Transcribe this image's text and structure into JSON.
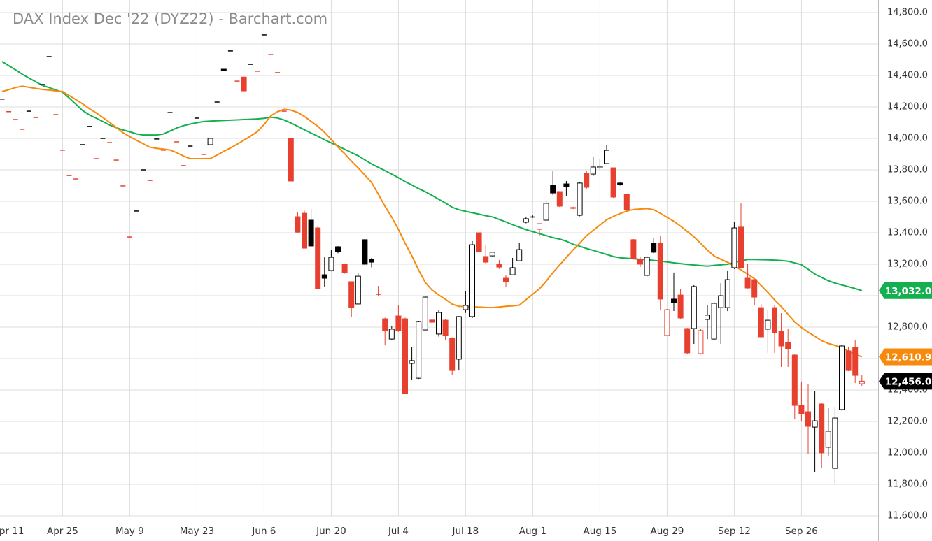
{
  "chart_data": {
    "type": "candlestick",
    "title": "DAX Index Dec '22 (DYZ22) - Barchart.com",
    "categories": [
      "Apr 11",
      null,
      null,
      null,
      null,
      null,
      null,
      null,
      null,
      null,
      "Apr 25",
      null,
      null,
      null,
      null,
      null,
      null,
      null,
      null,
      null,
      "May 9",
      null,
      null,
      null,
      null,
      null,
      null,
      null,
      null,
      null,
      "May 23",
      null,
      null,
      null,
      null,
      null,
      null,
      null,
      null,
      null,
      "Jun 6",
      null,
      null,
      null,
      null,
      null,
      null,
      null,
      null,
      null,
      "Jun 20",
      null,
      null,
      null,
      null,
      null,
      null,
      null,
      null,
      null,
      "Jul 4",
      null,
      null,
      null,
      null,
      null,
      null,
      null,
      null,
      null,
      "Jul 18",
      null,
      null,
      null,
      null,
      null,
      null,
      null,
      null,
      null,
      "Aug 1",
      null,
      null,
      null,
      null,
      null,
      null,
      null,
      null,
      null,
      "Aug 15",
      null,
      null,
      null,
      null,
      null,
      null,
      null,
      null,
      null,
      "Aug 29",
      null,
      null,
      null,
      null,
      null,
      null,
      null,
      null,
      null,
      "Sep 12",
      null,
      null,
      null,
      null,
      null,
      null,
      null,
      null,
      null,
      "Sep 26",
      null,
      null,
      null,
      null,
      null,
      null,
      null,
      null,
      null
    ],
    "candles": {
      "up_color": "#000000",
      "down_color": "#e8402f",
      "last_label": "12,456.0",
      "open": [
        null,
        14250,
        14170,
        14120,
        14058,
        14173,
        14133,
        14342,
        14520,
        14151,
        13925,
        13764,
        13742,
        13960,
        14076,
        13871,
        14000,
        13973,
        13862,
        13698,
        13373,
        13538,
        13800,
        13733,
        13996,
        13925,
        14164,
        13978,
        13827,
        13951,
        14129,
        13898,
        13960,
        14231,
        14440,
        14556,
        14364,
        14390,
        14471,
        14427,
        14658,
        14533,
        14418,
        14173,
        14000,
        13502,
        13524,
        13480,
        13431,
        13133,
        13160,
        13311,
        13200,
        13089,
        12947,
        13356,
        13231,
        13009,
        12853,
        12724,
        12871,
        12853,
        12569,
        12475,
        12782,
        12845,
        12756,
        12844,
        12729,
        12596,
        12911,
        12867,
        13400,
        13249,
        13253,
        13200,
        13111,
        13133,
        13222,
        13467,
        13500,
        13422,
        13480,
        13700,
        13662,
        13711,
        13560,
        13511,
        13778,
        13773,
        13813,
        13840,
        13813,
        13716,
        13644,
        13356,
        13231,
        13129,
        13333,
        13333,
        12747,
        12978,
        13004,
        12791,
        12791,
        12631,
        12849,
        12724,
        12924,
        12924,
        13178,
        13436,
        13111,
        13102,
        12924,
        12787,
        12924,
        12773,
        12700,
        12622,
        12302,
        12262,
        12164,
        12311,
        12036,
        11902,
        12276,
        12649,
        12671,
        12440
      ],
      "high": [
        null,
        14250,
        14170,
        14120,
        14058,
        14173,
        14133,
        14342,
        14520,
        14151,
        13925,
        13764,
        13742,
        13960,
        14076,
        13871,
        14000,
        13973,
        13862,
        13698,
        13373,
        13538,
        13800,
        13733,
        13996,
        13925,
        14164,
        13978,
        13827,
        13951,
        14129,
        13898,
        14000,
        14231,
        14440,
        14556,
        14364,
        14390,
        14471,
        14427,
        14658,
        14533,
        14418,
        14173,
        14000,
        13530,
        13540,
        13551,
        13440,
        13244,
        13293,
        13315,
        13205,
        13090,
        13147,
        13360,
        13240,
        13062,
        12860,
        12809,
        12938,
        12860,
        12671,
        12840,
        12995,
        12850,
        12911,
        12850,
        12735,
        12870,
        13031,
        13347,
        13404,
        13324,
        13280,
        13227,
        13133,
        13240,
        13338,
        13500,
        13510,
        13460,
        13600,
        13791,
        13665,
        13729,
        13565,
        13720,
        13796,
        13880,
        13871,
        13956,
        13815,
        13720,
        13648,
        13360,
        13249,
        13253,
        13369,
        13382,
        12915,
        13147,
        13044,
        12795,
        13067,
        12790,
        12938,
        12960,
        13080,
        13160,
        13467,
        13591,
        13204,
        13105,
        12947,
        12907,
        12942,
        12889,
        12790,
        12630,
        12449,
        12436,
        12391,
        12320,
        12284,
        12293,
        12689,
        12676,
        12720,
        12493
      ],
      "low": [
        null,
        14250,
        14170,
        14120,
        14058,
        14173,
        14133,
        14342,
        14520,
        14151,
        13925,
        13764,
        13742,
        13960,
        14076,
        13871,
        14000,
        13973,
        13862,
        13698,
        13373,
        13538,
        13800,
        13733,
        13996,
        13925,
        14164,
        13978,
        13827,
        13951,
        14129,
        13898,
        13960,
        14231,
        14430,
        14556,
        14364,
        14302,
        14471,
        14427,
        14658,
        14533,
        14418,
        14173,
        13729,
        13400,
        13300,
        13310,
        13040,
        13058,
        13155,
        13270,
        13140,
        12867,
        12945,
        13190,
        13180,
        13000,
        12684,
        12720,
        12770,
        12375,
        12467,
        12470,
        12780,
        12820,
        12740,
        12720,
        12493,
        12524,
        12890,
        12858,
        13270,
        13200,
        13250,
        13170,
        13053,
        13130,
        13220,
        13460,
        13495,
        13378,
        13478,
        13640,
        13564,
        13636,
        13550,
        13505,
        13680,
        13760,
        13800,
        13835,
        13622,
        13700,
        13540,
        13230,
        13182,
        13120,
        13270,
        12911,
        12745,
        12902,
        12850,
        12627,
        12693,
        12625,
        12724,
        12720,
        12693,
        12902,
        13170,
        13173,
        13045,
        12942,
        12730,
        12636,
        12636,
        12547,
        12547,
        12213,
        12200,
        11991,
        11880,
        11902,
        11982,
        11804,
        12270,
        12520,
        12444,
        12427
      ],
      "close": [
        null,
        14250,
        14170,
        14120,
        14058,
        14173,
        14133,
        14342,
        14520,
        14151,
        13925,
        13764,
        13742,
        13960,
        14076,
        13871,
        14000,
        13973,
        13862,
        13698,
        13373,
        13538,
        13800,
        13733,
        13996,
        13925,
        14164,
        13978,
        13827,
        13951,
        14129,
        13898,
        14000,
        14231,
        14430,
        14556,
        14364,
        14302,
        14471,
        14427,
        14658,
        14533,
        14418,
        14173,
        13729,
        13404,
        13302,
        13316,
        13045,
        13111,
        13244,
        13280,
        13147,
        12925,
        13124,
        13200,
        13213,
        13009,
        12778,
        12787,
        12780,
        12378,
        12587,
        12836,
        12991,
        12831,
        12893,
        12747,
        12524,
        12867,
        12938,
        13324,
        13280,
        13213,
        13276,
        13182,
        13089,
        13178,
        13293,
        13489,
        13500,
        13458,
        13587,
        13653,
        13569,
        13693,
        13556,
        13716,
        13689,
        13818,
        13822,
        13924,
        13627,
        13707,
        13547,
        13236,
        13200,
        13244,
        13276,
        12978,
        12911,
        12956,
        12858,
        12636,
        13058,
        12778,
        12876,
        12951,
        13000,
        13102,
        13431,
        13178,
        13049,
        12991,
        12738,
        12844,
        12764,
        12680,
        12660,
        12302,
        12249,
        12169,
        12204,
        12000,
        12138,
        12222,
        12680,
        12524,
        12493,
        12456
      ]
    },
    "series": [
      {
        "color": "#14b04f",
        "last_label": "13,032.0",
        "values": [
          null,
          14489,
          14462,
          14436,
          14408,
          14384,
          14360,
          14337,
          14323,
          14308,
          14294,
          14256,
          14217,
          14177,
          14149,
          14129,
          14107,
          14085,
          14068,
          14054,
          14042,
          14029,
          14022,
          14022,
          14022,
          14028,
          14047,
          14066,
          14081,
          14091,
          14100,
          14107,
          14110,
          14112,
          14114,
          14116,
          14118,
          14120,
          14122,
          14124,
          14128,
          14135,
          14130,
          14117,
          14098,
          14077,
          14055,
          14034,
          14014,
          13991,
          13971,
          13951,
          13931,
          13910,
          13890,
          13863,
          13838,
          13816,
          13795,
          13773,
          13750,
          13725,
          13704,
          13681,
          13661,
          13638,
          13613,
          13589,
          13562,
          13546,
          13536,
          13527,
          13518,
          13508,
          13501,
          13485,
          13469,
          13451,
          13435,
          13420,
          13407,
          13394,
          13382,
          13369,
          13360,
          13346,
          13327,
          13314,
          13300,
          13288,
          13275,
          13262,
          13249,
          13241,
          13238,
          13235,
          13231,
          13229,
          13224,
          13220,
          13214,
          13209,
          13204,
          13199,
          13195,
          13191,
          13188,
          13192,
          13196,
          13200,
          13210,
          13221,
          13230,
          13230,
          13229,
          13228,
          13226,
          13223,
          13219,
          13208,
          13197,
          13168,
          13137,
          13116,
          13095,
          13080,
          13068,
          13057,
          13045,
          13032
        ]
      },
      {
        "color": "#f7890c",
        "last_label": "12,610.9",
        "values": [
          null,
          14298,
          14310,
          14323,
          14332,
          14325,
          14318,
          14311,
          14307,
          14302,
          14298,
          14272,
          14246,
          14219,
          14189,
          14162,
          14133,
          14102,
          14070,
          14036,
          14011,
          13988,
          13966,
          13944,
          13937,
          13932,
          13926,
          13909,
          13888,
          13871,
          13871,
          13871,
          13872,
          13894,
          13918,
          13939,
          13963,
          13989,
          14015,
          14043,
          14088,
          14143,
          14170,
          14185,
          14180,
          14165,
          14140,
          14108,
          14077,
          14039,
          13994,
          13945,
          13902,
          13855,
          13813,
          13766,
          13720,
          13646,
          13568,
          13499,
          13421,
          13333,
          13253,
          13164,
          13084,
          13036,
          13005,
          12977,
          12946,
          12932,
          12930,
          12929,
          12927,
          12925,
          12924,
          12928,
          12932,
          12935,
          12940,
          12975,
          13009,
          13044,
          13092,
          13146,
          13195,
          13243,
          13291,
          13334,
          13381,
          13415,
          13449,
          13483,
          13504,
          13522,
          13538,
          13548,
          13551,
          13554,
          13546,
          13523,
          13498,
          13473,
          13442,
          13408,
          13374,
          13332,
          13290,
          13253,
          13232,
          13212,
          13189,
          13164,
          13137,
          13108,
          13065,
          13021,
          12974,
          12931,
          12882,
          12833,
          12798,
          12768,
          12742,
          12714,
          12696,
          12684,
          12667,
          12647,
          12626,
          12610.9
        ]
      }
    ],
    "ylim": [
      11600,
      14800
    ],
    "yticks": [
      {
        "value": 11600,
        "label": "11,600.0"
      },
      {
        "value": 11800,
        "label": "11,800.0"
      },
      {
        "value": 12000,
        "label": "12,000.0"
      },
      {
        "value": 12200,
        "label": "12,200.0"
      },
      {
        "value": 12400,
        "label": "12,400.0"
      },
      {
        "value": 12600,
        "label": "12,600.0"
      },
      {
        "value": 12800,
        "label": "12,800.0"
      },
      {
        "value": 13000,
        "label": "13,000.0"
      },
      {
        "value": 13200,
        "label": "13,200.0"
      },
      {
        "value": 13400,
        "label": "13,400.0"
      },
      {
        "value": 13600,
        "label": "13,600.0"
      },
      {
        "value": 13800,
        "label": "13,800.0"
      },
      {
        "value": 14000,
        "label": "14,000.0"
      },
      {
        "value": 14200,
        "label": "14,200.0"
      },
      {
        "value": 14400,
        "label": "14,400.0"
      },
      {
        "value": 14600,
        "label": "14,600.0"
      },
      {
        "value": 14800,
        "label": "14,800.0"
      }
    ],
    "grid": true
  }
}
